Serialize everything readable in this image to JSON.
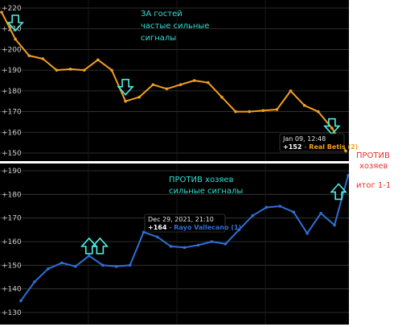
{
  "colors": {
    "background": "#000000",
    "grid": "#3a3a3a",
    "top_series": "#f2a01e",
    "bottom_series": "#2f6fd6",
    "annotation": "#2fe0d2",
    "arrow": "#4ff0e6",
    "side_note": "#e8322b"
  },
  "chart_data": [
    {
      "type": "line",
      "title": "",
      "xlabel": "",
      "ylabel": "",
      "ylim": [
        150,
        220
      ],
      "yticks": [
        "+220",
        "+210",
        "+200",
        "+190",
        "+180",
        "+170",
        "+160",
        "+150"
      ],
      "ytick_values": [
        220,
        210,
        200,
        190,
        180,
        170,
        160,
        150
      ],
      "grid": true,
      "series": [
        {
          "values": [
            218,
            205,
            197,
            195.5,
            190,
            190.5,
            190,
            195,
            190,
            175,
            177,
            183,
            181,
            183,
            185,
            184,
            177,
            170,
            170,
            170.5,
            171,
            180,
            173,
            170,
            162,
            151
          ]
        }
      ],
      "note_lines": [
        "ЗА гостей",
        "частые сильные",
        "сигналы"
      ],
      "tooltip": {
        "date": "Jan 09, 12:48",
        "value": "+152",
        "name": "Real Betis (2)"
      },
      "arrows": [
        {
          "direction": "down",
          "x_index": 1,
          "y": 213
        },
        {
          "direction": "down",
          "x_index": 9,
          "y": 182
        },
        {
          "direction": "down",
          "x_index": 24,
          "y": 163
        }
      ]
    },
    {
      "type": "line",
      "title": "",
      "xlabel": "",
      "ylabel": "",
      "ylim": [
        130,
        190
      ],
      "yticks": [
        "+190",
        "+180",
        "+170",
        "+160",
        "+150",
        "+140",
        "+130"
      ],
      "ytick_values": [
        190,
        180,
        170,
        160,
        150,
        140,
        130
      ],
      "grid": true,
      "series": [
        {
          "values": [
            135,
            143,
            148.5,
            151,
            149.5,
            154,
            150,
            149.5,
            150,
            164,
            162,
            158,
            157.5,
            158.5,
            160,
            159,
            165,
            171,
            174.5,
            175,
            172.5,
            163.5,
            172,
            167,
            188
          ]
        }
      ],
      "note_lines": [
        "ПРОТИВ хозяев",
        "сильные сигналы"
      ],
      "tooltip": {
        "date": "Dec 29, 2021, 21:10",
        "value": "+164",
        "name": "Rayo Vallecano (1)"
      },
      "arrows": [
        {
          "direction": "up",
          "x_index": 5,
          "y": 158
        },
        {
          "direction": "up",
          "x_index": 5.8,
          "y": 158
        },
        {
          "direction": "up",
          "x_index": 23.3,
          "y": 181
        }
      ]
    }
  ],
  "side_notes": {
    "line1": "ПРОТИВ",
    "line2": "хозяев",
    "line3": "итог 1-1"
  }
}
